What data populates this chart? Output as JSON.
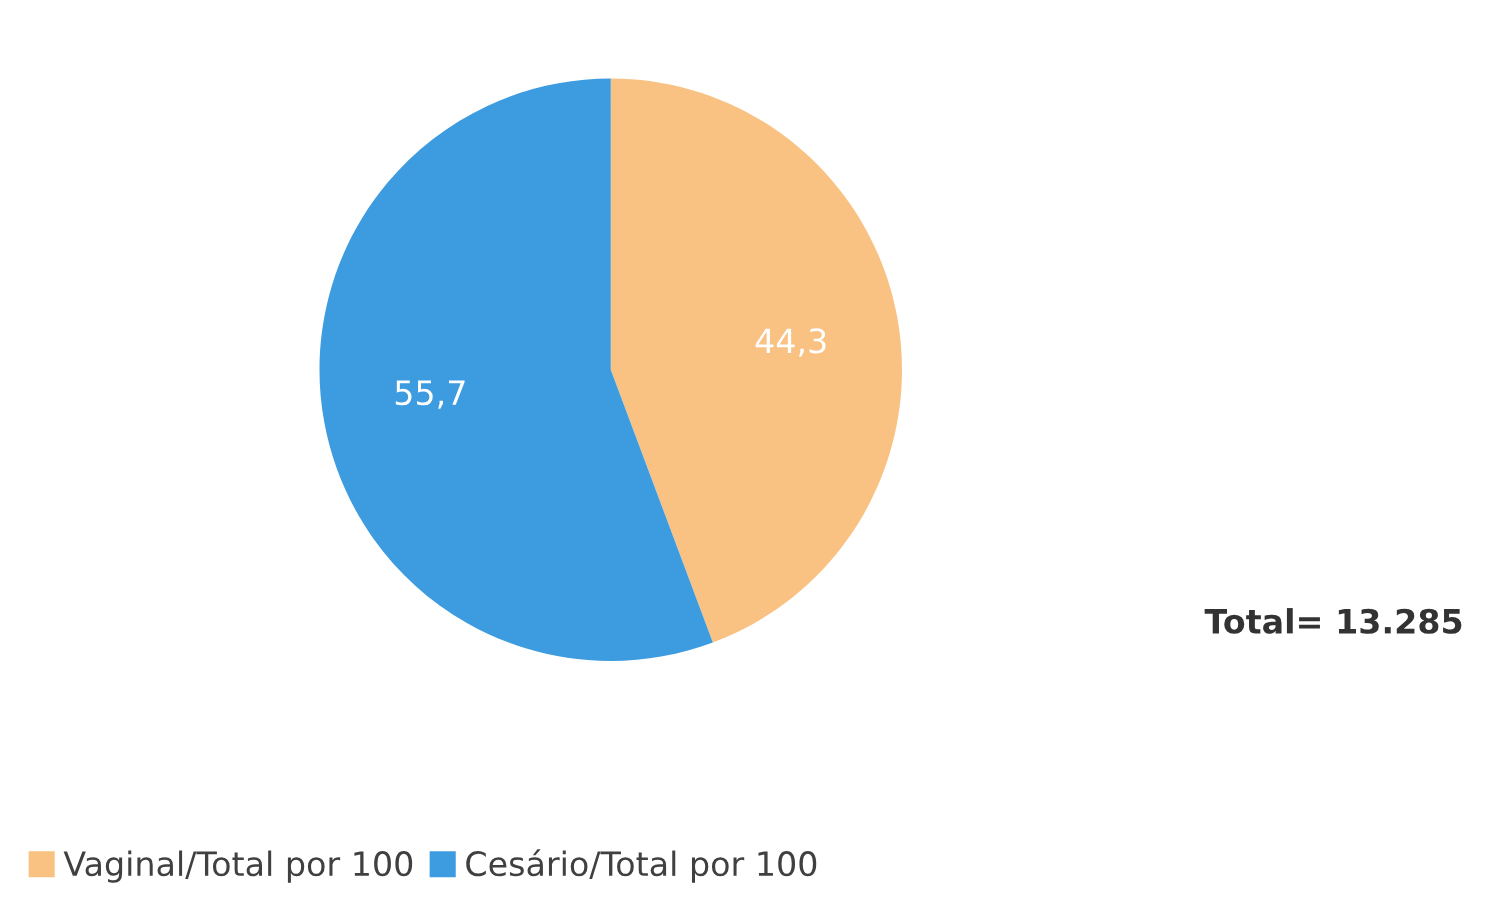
{
  "chart_data": {
    "type": "pie",
    "categories": [
      "Vaginal/Total por 100",
      "Cesário/Total por 100"
    ],
    "values": [
      44.3,
      55.7
    ],
    "colors": [
      "#f9c283",
      "#3d9be0"
    ],
    "value_labels": [
      "44,3",
      "55,7"
    ],
    "legend": "bottom",
    "annotations": [
      "Total= 13.285"
    ]
  }
}
